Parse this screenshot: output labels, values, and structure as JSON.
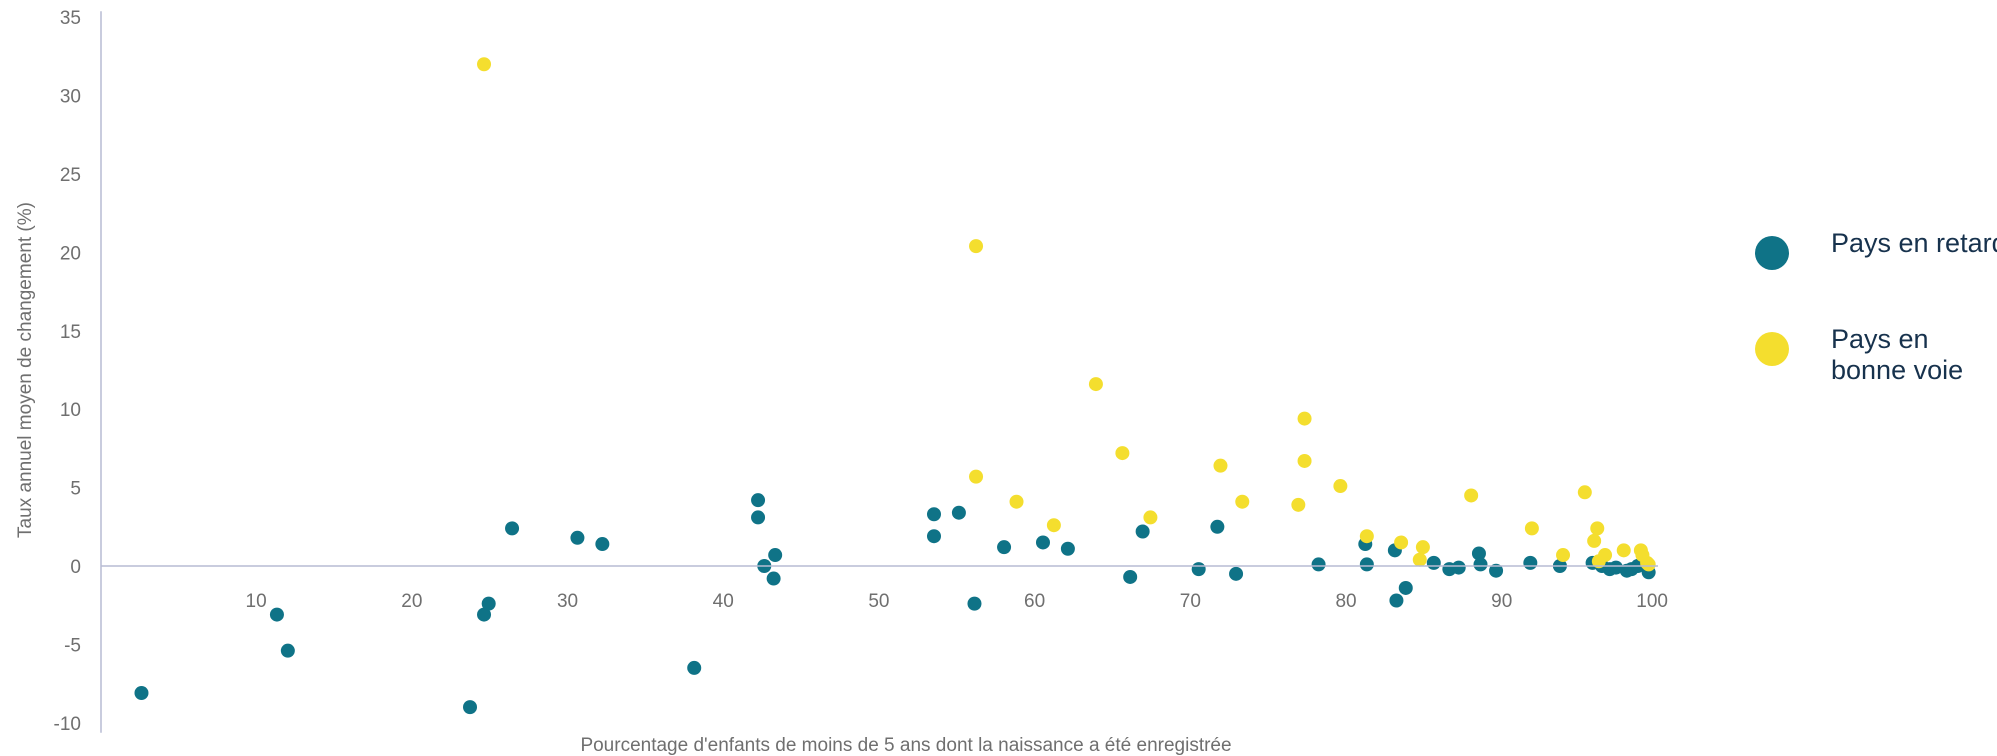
{
  "chart_data": {
    "type": "scatter",
    "xlabel": "Pourcentage d'enfants de moins de 5 ans dont la naissance a été enregistrée",
    "ylabel": "Taux annuel moyen de changement (%)",
    "x_ticks": [
      "10",
      "20",
      "30",
      "40",
      "50",
      "60",
      "70",
      "80",
      "90",
      "100"
    ],
    "y_ticks": [
      "35",
      "30",
      "25",
      "20",
      "15",
      "10",
      "5",
      "0",
      "-5",
      "-10"
    ],
    "xlim": [
      0,
      100
    ],
    "ylim": [
      -10,
      35
    ],
    "grid": false,
    "legend_position": "right",
    "series": [
      {
        "name": "Pays en retard",
        "color": "#0f7387",
        "points": [
          [
            2.6,
            -8.1
          ],
          [
            11.3,
            -3.1
          ],
          [
            12.0,
            -5.4
          ],
          [
            23.7,
            -9.0
          ],
          [
            24.6,
            -3.1
          ],
          [
            24.9,
            -2.4
          ],
          [
            26.4,
            2.4
          ],
          [
            30.6,
            1.8
          ],
          [
            32.2,
            1.4
          ],
          [
            38.1,
            -6.5
          ],
          [
            42.2,
            4.2
          ],
          [
            42.2,
            3.1
          ],
          [
            42.6,
            0.0
          ],
          [
            43.2,
            -0.8
          ],
          [
            43.3,
            0.7
          ],
          [
            53.5,
            3.3
          ],
          [
            53.5,
            1.9
          ],
          [
            55.1,
            3.4
          ],
          [
            56.1,
            -2.4
          ],
          [
            58.0,
            1.2
          ],
          [
            60.5,
            1.5
          ],
          [
            62.1,
            1.1
          ],
          [
            66.1,
            -0.7
          ],
          [
            66.9,
            2.2
          ],
          [
            70.5,
            -0.2
          ],
          [
            71.7,
            2.5
          ],
          [
            72.9,
            -0.5
          ],
          [
            78.2,
            0.1
          ],
          [
            81.2,
            1.4
          ],
          [
            81.3,
            0.1
          ],
          [
            83.1,
            1.0
          ],
          [
            83.2,
            -2.2
          ],
          [
            83.8,
            -1.4
          ],
          [
            85.6,
            0.2
          ],
          [
            86.6,
            -0.2
          ],
          [
            87.2,
            -0.1
          ],
          [
            88.5,
            0.8
          ],
          [
            88.6,
            0.1
          ],
          [
            89.6,
            -0.3
          ],
          [
            91.8,
            0.2
          ],
          [
            93.7,
            0.0
          ],
          [
            95.8,
            0.2
          ],
          [
            96.4,
            0.0
          ],
          [
            96.9,
            -0.2
          ],
          [
            97.3,
            -0.1
          ],
          [
            98.0,
            -0.3
          ],
          [
            98.3,
            -0.2
          ],
          [
            98.7,
            0.0
          ],
          [
            99.0,
            0.2
          ],
          [
            99.4,
            -0.4
          ]
        ]
      },
      {
        "name": "Pays en bonne voie",
        "color": "#f4de2e",
        "points": [
          [
            24.6,
            32.0
          ],
          [
            56.2,
            20.4
          ],
          [
            56.2,
            5.7
          ],
          [
            58.8,
            4.1
          ],
          [
            61.2,
            2.6
          ],
          [
            63.9,
            11.6
          ],
          [
            65.6,
            7.2
          ],
          [
            67.4,
            3.1
          ],
          [
            71.9,
            6.4
          ],
          [
            73.3,
            4.1
          ],
          [
            76.9,
            3.9
          ],
          [
            77.3,
            9.4
          ],
          [
            77.3,
            6.7
          ],
          [
            79.6,
            5.1
          ],
          [
            81.3,
            1.9
          ],
          [
            83.5,
            1.5
          ],
          [
            84.7,
            0.4
          ],
          [
            84.9,
            1.2
          ],
          [
            88.0,
            4.5
          ],
          [
            91.9,
            2.4
          ],
          [
            93.9,
            0.7
          ],
          [
            95.3,
            4.7
          ],
          [
            95.9,
            1.6
          ],
          [
            96.1,
            2.4
          ],
          [
            96.2,
            0.3
          ],
          [
            96.6,
            0.7
          ],
          [
            97.8,
            1.0
          ],
          [
            98.9,
            1.0
          ],
          [
            99.0,
            0.7
          ],
          [
            99.3,
            0.2
          ],
          [
            99.4,
            0.1
          ]
        ]
      }
    ]
  }
}
